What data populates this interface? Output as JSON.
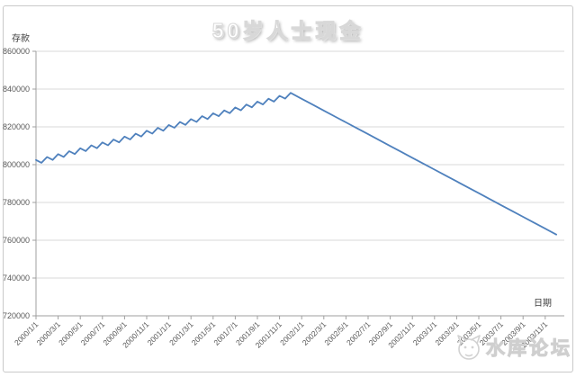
{
  "watermark": {
    "text": "水库论坛",
    "icon": "cat-face-icon"
  },
  "chart_data": {
    "type": "line",
    "title": "50岁人士现金",
    "xlabel": "日期",
    "ylabel": "存款",
    "ylim": [
      720000,
      860000
    ],
    "ytick_step": 20000,
    "yticks": [
      860000,
      840000,
      820000,
      800000,
      780000,
      760000,
      740000,
      720000
    ],
    "xtick_labels": [
      "2000/1/1",
      "2000/3/1",
      "2000/5/1",
      "2000/7/1",
      "2000/9/1",
      "2000/11/1",
      "2001/1/1",
      "2001/3/1",
      "2001/5/1",
      "2001/7/1",
      "2001/9/1",
      "2001/11/1",
      "2002/1/1",
      "2002/3/1",
      "2002/5/1",
      "2002/7/1",
      "2002/9/1",
      "2002/11/1",
      "2003/1/1",
      "2003/3/1",
      "2003/5/1",
      "2003/7/1",
      "2003/9/1",
      "2003/11/1"
    ],
    "grid": "horizontal",
    "legend": "none",
    "line_color": "#4f81bd",
    "grid_color": "#d9d9d9",
    "axis_color": "#9f9f9f",
    "tick_label_color": "#595959",
    "series": [
      {
        "name": "存款",
        "points": [
          [
            "2000/1/1",
            802500
          ],
          [
            "2000/1/15",
            801000
          ],
          [
            "2000/2/1",
            804043
          ],
          [
            "2000/2/15",
            802543
          ],
          [
            "2000/3/1",
            805586
          ],
          [
            "2000/3/15",
            804086
          ],
          [
            "2000/4/1",
            807129
          ],
          [
            "2000/4/15",
            805629
          ],
          [
            "2000/5/1",
            808672
          ],
          [
            "2000/5/15",
            807172
          ],
          [
            "2000/6/1",
            810215
          ],
          [
            "2000/6/15",
            808715
          ],
          [
            "2000/7/1",
            811758
          ],
          [
            "2000/7/15",
            810258
          ],
          [
            "2000/8/1",
            813301
          ],
          [
            "2000/8/15",
            811801
          ],
          [
            "2000/9/1",
            814844
          ],
          [
            "2000/9/15",
            813344
          ],
          [
            "2000/10/1",
            816387
          ],
          [
            "2000/10/15",
            814887
          ],
          [
            "2000/11/1",
            817930
          ],
          [
            "2000/11/15",
            816430
          ],
          [
            "2000/12/1",
            819473
          ],
          [
            "2000/12/15",
            817973
          ],
          [
            "2001/1/1",
            821016
          ],
          [
            "2001/1/15",
            819516
          ],
          [
            "2001/2/1",
            822559
          ],
          [
            "2001/2/15",
            821059
          ],
          [
            "2001/3/1",
            824102
          ],
          [
            "2001/3/15",
            822602
          ],
          [
            "2001/4/1",
            825645
          ],
          [
            "2001/4/15",
            824145
          ],
          [
            "2001/5/1",
            827188
          ],
          [
            "2001/5/15",
            825688
          ],
          [
            "2001/6/1",
            828731
          ],
          [
            "2001/6/15",
            827231
          ],
          [
            "2001/7/1",
            830274
          ],
          [
            "2001/7/15",
            828774
          ],
          [
            "2001/8/1",
            831817
          ],
          [
            "2001/8/15",
            830317
          ],
          [
            "2001/9/1",
            833360
          ],
          [
            "2001/9/15",
            831860
          ],
          [
            "2001/10/1",
            834903
          ],
          [
            "2001/10/15",
            833403
          ],
          [
            "2001/11/1",
            836446
          ],
          [
            "2001/11/15",
            834946
          ],
          [
            "2001/12/1",
            837989
          ],
          [
            "2002/1/1",
            834865
          ],
          [
            "2002/2/1",
            831741
          ],
          [
            "2002/3/1",
            828617
          ],
          [
            "2002/4/1",
            825493
          ],
          [
            "2002/5/1",
            822369
          ],
          [
            "2002/6/1",
            819245
          ],
          [
            "2002/7/1",
            816121
          ],
          [
            "2002/8/1",
            812997
          ],
          [
            "2002/9/1",
            809873
          ],
          [
            "2002/10/1",
            806749
          ],
          [
            "2002/11/1",
            803625
          ],
          [
            "2002/12/1",
            800501
          ],
          [
            "2003/1/1",
            797377
          ],
          [
            "2003/2/1",
            794253
          ],
          [
            "2003/3/1",
            791129
          ],
          [
            "2003/4/1",
            788005
          ],
          [
            "2003/5/1",
            784881
          ],
          [
            "2003/6/1",
            781757
          ],
          [
            "2003/7/1",
            778633
          ],
          [
            "2003/8/1",
            775509
          ],
          [
            "2003/9/1",
            772385
          ],
          [
            "2003/10/1",
            769261
          ],
          [
            "2003/11/1",
            766137
          ],
          [
            "2003/12/1",
            763013
          ]
        ]
      }
    ]
  }
}
